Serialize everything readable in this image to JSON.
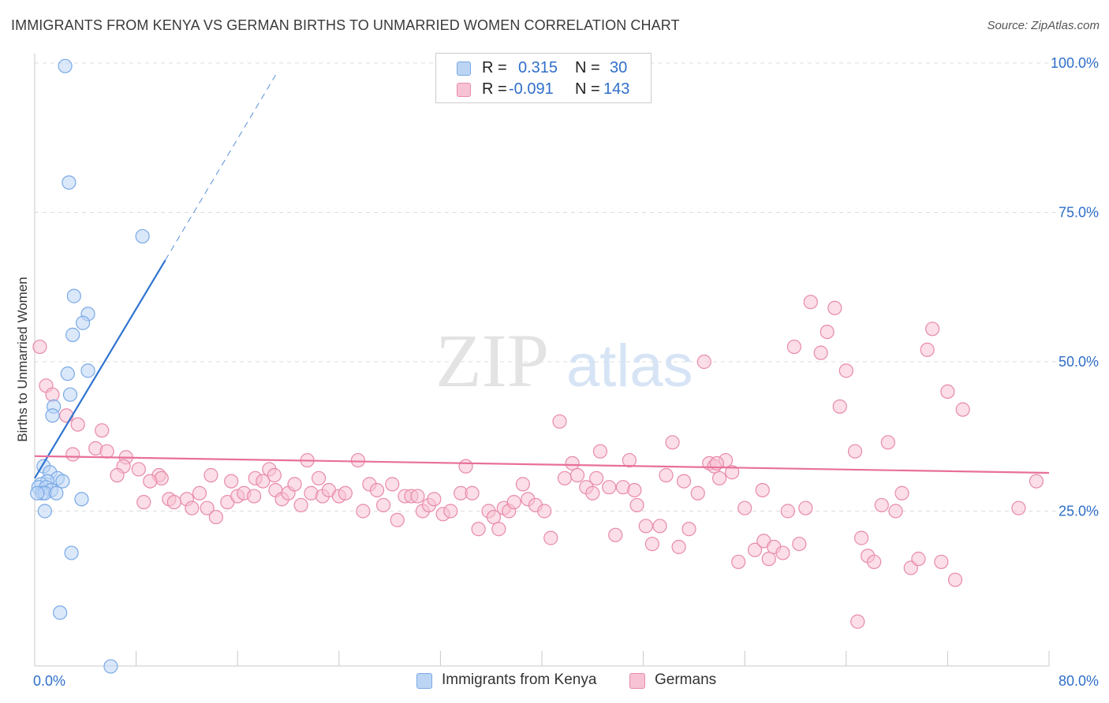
{
  "header": {
    "title": "IMMIGRANTS FROM KENYA VS GERMAN BIRTHS TO UNMARRIED WOMEN CORRELATION CHART",
    "source": "Source: ZipAtlas.com"
  },
  "watermark": {
    "zip": "ZIP",
    "atlas": "atlas"
  },
  "legend": {
    "rows": [
      {
        "series": "Immigrants from Kenya",
        "r_label": "R =",
        "r_value": "0.315",
        "n_label": "N =",
        "n_value": "30",
        "color": "#7aa9e6",
        "fill": "#bcd5f5"
      },
      {
        "series": "Germans",
        "r_label": "R =",
        "r_value": "-0.091",
        "n_label": "N =",
        "n_value": "143",
        "color": "#e88aa9",
        "fill": "#f7c3d4"
      }
    ]
  },
  "colors": {
    "kenya_stroke": "#7aa9e6",
    "kenya_fill": "#bcd5f5",
    "kenya_line": "#2f74d0",
    "germans_stroke": "#e88aa9",
    "germans_fill": "#f7c3d4",
    "germans_line": "#e8709a",
    "axis_label": "#2f6fca",
    "grid": "#dddddd"
  },
  "chart_data": {
    "type": "scatter",
    "title": "IMMIGRANTS FROM KENYA VS GERMAN BIRTHS TO UNMARRIED WOMEN CORRELATION CHART",
    "xlabel": "",
    "ylabel": "Births to Unmarried Women",
    "xlim": [
      0,
      80
    ],
    "ylim": [
      0,
      100
    ],
    "x_tick_labels": [
      {
        "value": 0,
        "label": "0.0%"
      },
      {
        "value": 80,
        "label": "80.0%"
      }
    ],
    "y_tick_labels": [
      {
        "value": 25,
        "label": "25.0%"
      },
      {
        "value": 50,
        "label": "50.0%"
      },
      {
        "value": 75,
        "label": "75.0%"
      },
      {
        "value": 100,
        "label": "100.0%"
      }
    ],
    "x_minor_ticks": [
      0,
      8,
      16,
      24,
      32,
      40,
      48,
      56,
      64,
      72,
      80
    ],
    "series": [
      {
        "name": "Immigrants from Kenya",
        "points": [
          [
            2.4,
            99.5
          ],
          [
            2.7,
            80
          ],
          [
            8.5,
            71
          ],
          [
            3.1,
            61
          ],
          [
            4.2,
            58
          ],
          [
            3.8,
            56.5
          ],
          [
            3.0,
            54.5
          ],
          [
            4.2,
            48.5
          ],
          [
            2.6,
            48
          ],
          [
            2.8,
            44.5
          ],
          [
            1.5,
            42.5
          ],
          [
            1.4,
            41
          ],
          [
            0.7,
            32.5
          ],
          [
            1.2,
            31.5
          ],
          [
            1.8,
            30.5
          ],
          [
            1.0,
            30
          ],
          [
            2.2,
            30
          ],
          [
            0.5,
            29.5
          ],
          [
            0.3,
            29
          ],
          [
            0.9,
            29
          ],
          [
            1.3,
            28.5
          ],
          [
            0.6,
            28
          ],
          [
            0.8,
            28
          ],
          [
            1.7,
            28
          ],
          [
            0.2,
            28
          ],
          [
            3.7,
            27
          ],
          [
            0.8,
            25
          ],
          [
            2.9,
            18
          ],
          [
            2.0,
            8
          ],
          [
            6.0,
            -1
          ]
        ],
        "trend": {
          "x0": 0.0,
          "y0": 30.5,
          "x1": 10.3,
          "y1": 67,
          "dash_x1": 19.0,
          "dash_y1": 98
        }
      },
      {
        "name": "Germans",
        "points": [
          [
            0.4,
            52.5
          ],
          [
            0.9,
            46
          ],
          [
            1.4,
            44.5
          ],
          [
            2.5,
            41
          ],
          [
            3.4,
            39.5
          ],
          [
            5.3,
            38.5
          ],
          [
            4.8,
            35.5
          ],
          [
            3.0,
            34.5
          ],
          [
            5.7,
            35
          ],
          [
            7.2,
            34
          ],
          [
            7.0,
            32.5
          ],
          [
            6.5,
            31
          ],
          [
            8.2,
            32
          ],
          [
            9.8,
            31
          ],
          [
            10.0,
            30.5
          ],
          [
            9.1,
            30
          ],
          [
            8.6,
            26.5
          ],
          [
            10.6,
            27
          ],
          [
            11.0,
            26.5
          ],
          [
            12.0,
            27
          ],
          [
            12.4,
            25.5
          ],
          [
            13.0,
            28
          ],
          [
            13.6,
            25.5
          ],
          [
            14.3,
            24
          ],
          [
            15.2,
            26.5
          ],
          [
            15.5,
            30
          ],
          [
            16.0,
            27.5
          ],
          [
            16.5,
            28
          ],
          [
            17.3,
            27.5
          ],
          [
            17.4,
            30.5
          ],
          [
            18.0,
            30
          ],
          [
            18.5,
            32
          ],
          [
            19.0,
            28.5
          ],
          [
            19.5,
            27
          ],
          [
            20.0,
            28
          ],
          [
            20.5,
            29.5
          ],
          [
            21.0,
            26
          ],
          [
            21.8,
            28
          ],
          [
            22.4,
            30.5
          ],
          [
            22.7,
            27.5
          ],
          [
            23.2,
            28.5
          ],
          [
            24.0,
            27.5
          ],
          [
            24.5,
            28
          ],
          [
            25.5,
            33.5
          ],
          [
            25.9,
            25
          ],
          [
            26.4,
            29.5
          ],
          [
            27.0,
            28.5
          ],
          [
            27.5,
            26
          ],
          [
            28.2,
            29.5
          ],
          [
            28.6,
            23.5
          ],
          [
            29.2,
            27.5
          ],
          [
            29.7,
            27.5
          ],
          [
            30.2,
            27.5
          ],
          [
            30.6,
            25
          ],
          [
            31.1,
            26
          ],
          [
            31.5,
            27
          ],
          [
            32.2,
            24.5
          ],
          [
            32.8,
            25
          ],
          [
            33.6,
            28
          ],
          [
            34.0,
            32.5
          ],
          [
            34.5,
            28
          ],
          [
            35.0,
            22
          ],
          [
            35.8,
            25
          ],
          [
            36.2,
            24
          ],
          [
            36.6,
            22
          ],
          [
            37.0,
            25.5
          ],
          [
            37.4,
            25
          ],
          [
            37.8,
            26.5
          ],
          [
            38.5,
            29.5
          ],
          [
            38.9,
            27
          ],
          [
            39.5,
            26
          ],
          [
            40.2,
            25
          ],
          [
            40.7,
            20.5
          ],
          [
            41.4,
            40
          ],
          [
            41.8,
            30.5
          ],
          [
            42.4,
            33
          ],
          [
            42.8,
            31
          ],
          [
            43.5,
            29
          ],
          [
            44.0,
            28
          ],
          [
            44.6,
            35
          ],
          [
            45.3,
            29
          ],
          [
            45.8,
            21
          ],
          [
            46.4,
            29
          ],
          [
            47.3,
            28.5
          ],
          [
            47.5,
            26
          ],
          [
            48.2,
            22.5
          ],
          [
            48.7,
            19.5
          ],
          [
            49.3,
            22.5
          ],
          [
            49.8,
            31
          ],
          [
            50.3,
            36.5
          ],
          [
            50.8,
            19
          ],
          [
            51.2,
            30
          ],
          [
            51.6,
            22
          ],
          [
            52.3,
            28
          ],
          [
            52.8,
            50
          ],
          [
            53.2,
            33
          ],
          [
            53.6,
            32.5
          ],
          [
            54.0,
            30.5
          ],
          [
            54.5,
            33.5
          ],
          [
            55.0,
            31.5
          ],
          [
            55.5,
            16.5
          ],
          [
            56.0,
            25.5
          ],
          [
            56.8,
            18.5
          ],
          [
            57.5,
            20
          ],
          [
            57.9,
            17
          ],
          [
            58.3,
            19
          ],
          [
            59.0,
            18
          ],
          [
            59.4,
            25
          ],
          [
            59.9,
            52.5
          ],
          [
            60.3,
            19.5
          ],
          [
            60.8,
            25.5
          ],
          [
            61.2,
            60
          ],
          [
            62.0,
            51.5
          ],
          [
            62.5,
            55
          ],
          [
            63.1,
            59
          ],
          [
            63.5,
            42.5
          ],
          [
            64.0,
            48.5
          ],
          [
            64.7,
            35
          ],
          [
            65.2,
            20.5
          ],
          [
            65.7,
            17.5
          ],
          [
            66.2,
            16.5
          ],
          [
            66.8,
            26
          ],
          [
            67.3,
            36.5
          ],
          [
            67.9,
            25
          ],
          [
            68.4,
            28
          ],
          [
            69.1,
            15.5
          ],
          [
            69.7,
            17
          ],
          [
            70.4,
            52
          ],
          [
            70.8,
            55.5
          ],
          [
            71.5,
            16.5
          ],
          [
            72.0,
            45
          ],
          [
            72.6,
            13.5
          ],
          [
            73.2,
            42
          ],
          [
            77.6,
            25.5
          ],
          [
            79.0,
            30
          ],
          [
            64.9,
            6.5
          ],
          [
            57.4,
            28.5
          ],
          [
            53.8,
            33
          ],
          [
            46.9,
            33.5
          ],
          [
            44.3,
            30.5
          ],
          [
            21.5,
            33.5
          ],
          [
            18.9,
            31
          ],
          [
            13.9,
            31
          ]
        ],
        "trend": {
          "x0": 0.0,
          "y0": 34.2,
          "x1": 80.0,
          "y1": 31.4
        }
      }
    ]
  }
}
